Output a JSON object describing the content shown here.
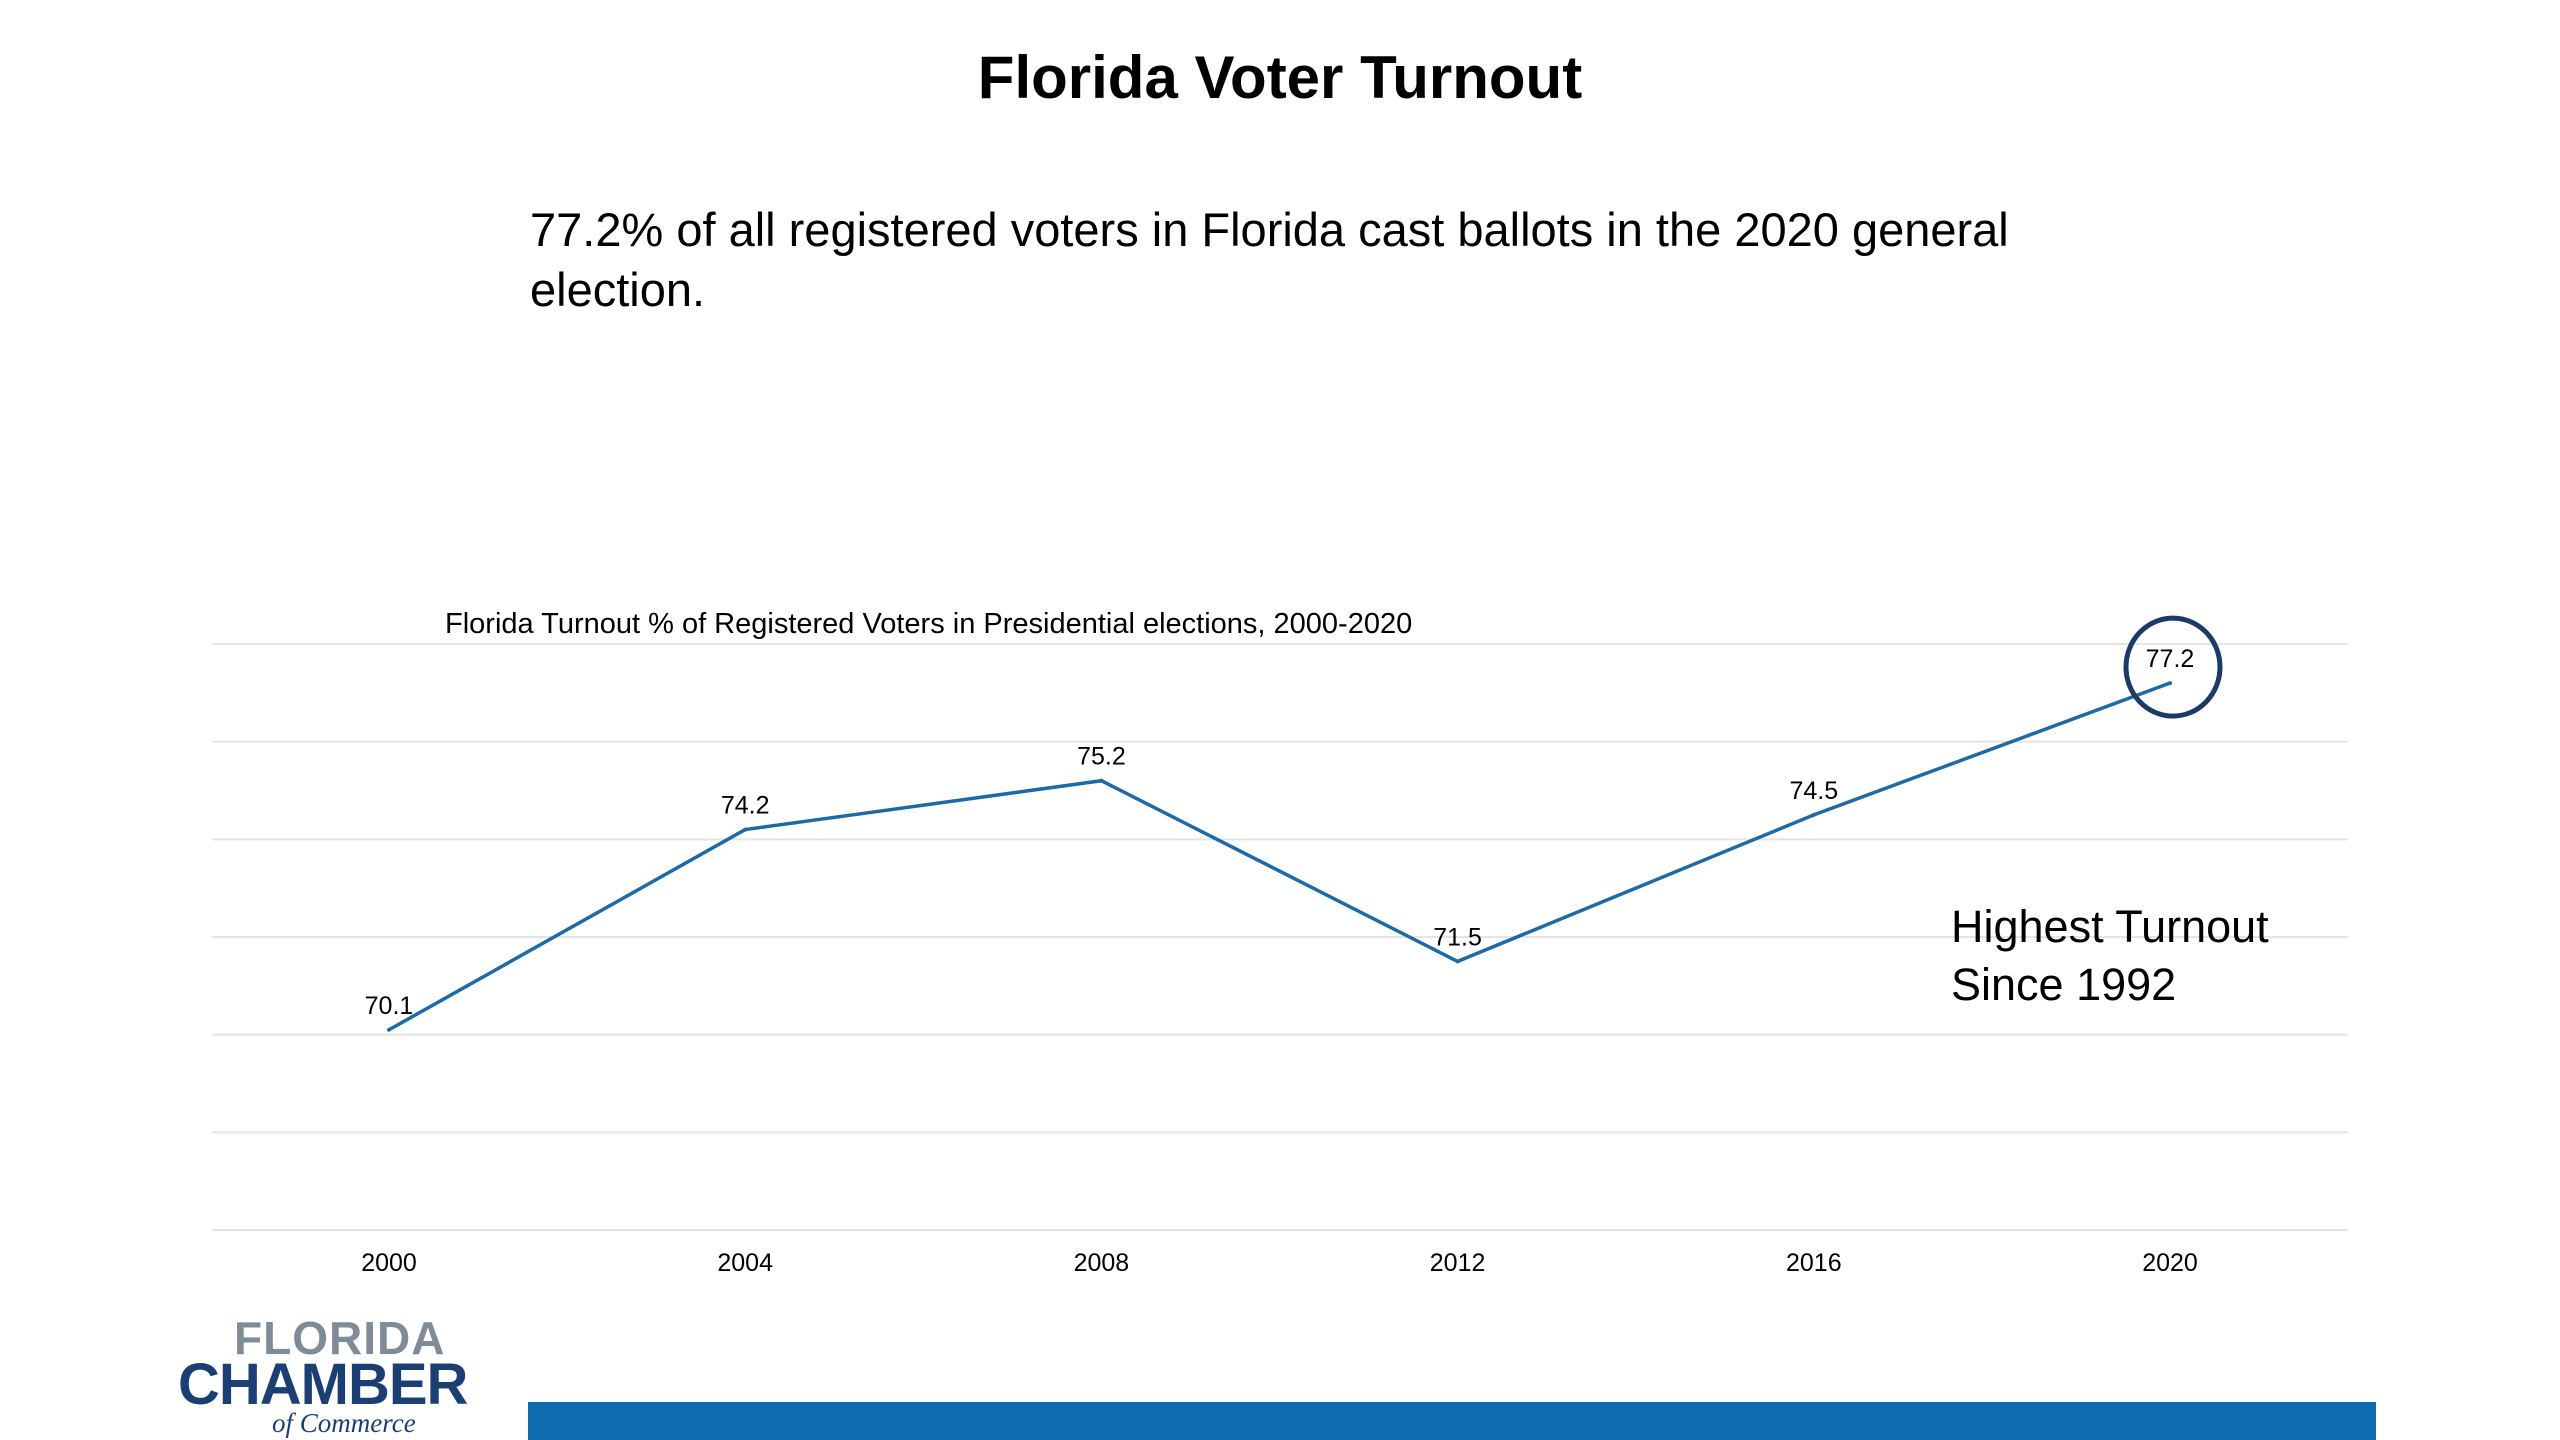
{
  "slide": {
    "title": "Florida Voter Turnout",
    "subtitle": "77.2% of all registered voters in Florida cast ballots in the 2020 general election.",
    "callout_line1": "Highest Turnout",
    "callout_line2": "Since 1992"
  },
  "logo": {
    "line1": "FLORIDA",
    "line2": "CHAMBER",
    "line3": "of Commerce"
  },
  "colors": {
    "brand_blue": "#0f6bb0",
    "line": "#1f6aa5",
    "logo_gray": "#7f8c98",
    "logo_navy": "#1c3f73",
    "circle": "#1c3a66",
    "gridline": "#e4e4e4"
  },
  "chart_data": {
    "type": "line",
    "title": "Florida Turnout % of Registered Voters in Presidential elections, 2000-2020",
    "categories": [
      "2000",
      "2004",
      "2008",
      "2012",
      "2016",
      "2020"
    ],
    "series": [
      {
        "values": [
          70.1,
          74.2,
          75.2,
          71.5,
          74.5,
          77.2
        ]
      }
    ],
    "data_labels": [
      "70.1",
      "74.2",
      "75.2",
      "71.5",
      "74.5",
      "77.2"
    ],
    "ylim": [
      66,
      78
    ],
    "grid": true,
    "highlight_category": "2020"
  }
}
